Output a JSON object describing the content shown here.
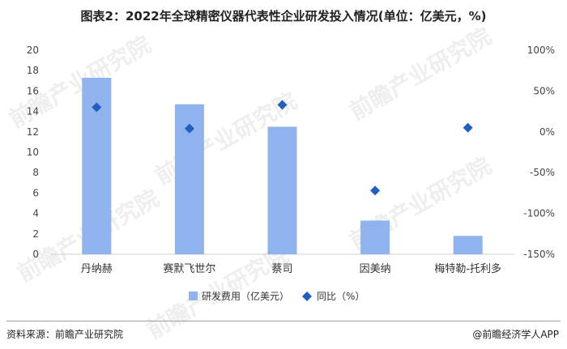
{
  "title": "图表2：2022年全球精密仪器代表性企业研发投入情况(单位：亿美元，%)",
  "footer": {
    "source": "资料来源：前瞻产业研究院",
    "brand": "@前瞻经济学人APP"
  },
  "watermark": "前瞻产业研究院",
  "colors": {
    "bar": "#8fb3ef",
    "marker": "#1f5fc4",
    "axis": "#d0d0d0",
    "text": "#444444"
  },
  "chart_data": {
    "type": "bar",
    "categories": [
      "丹纳赫",
      "赛默飞世尔",
      "蔡司",
      "因美纳",
      "梅特勒-托利多"
    ],
    "y_ticks": [
      "0",
      "2",
      "4",
      "6",
      "8",
      "10",
      "12",
      "14",
      "16",
      "18",
      "20"
    ],
    "y2_ticks": [
      "-150%",
      "-100%",
      "-50%",
      "0%",
      "50%",
      "100%"
    ],
    "ylim": [
      0,
      20
    ],
    "y2lim": [
      -150,
      100
    ],
    "legend_position": "bottom",
    "series": [
      {
        "name": "研发费用（亿美元）",
        "type": "bar",
        "axis": "left",
        "values": [
          17.3,
          14.7,
          12.5,
          3.3,
          1.8
        ]
      },
      {
        "name": "同比（%）",
        "type": "marker",
        "axis": "right",
        "values": [
          30,
          4,
          33,
          -72,
          5
        ]
      }
    ]
  }
}
